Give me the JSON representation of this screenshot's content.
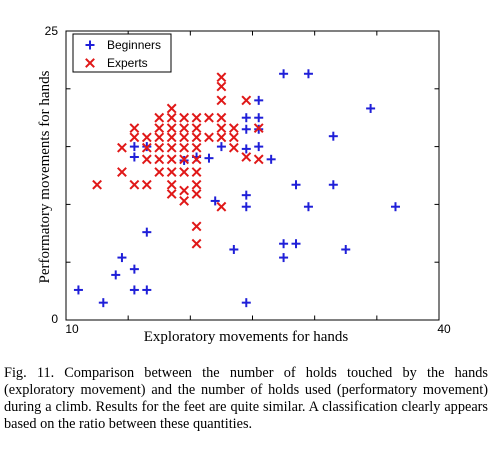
{
  "chart_data": {
    "type": "scatter",
    "title": "",
    "xlabel": "Exploratory movements for hands",
    "ylabel": "Performatory movements for hands",
    "xlim": [
      10,
      40
    ],
    "ylim": [
      0,
      25
    ],
    "x_tick_labels": [
      "10",
      "40"
    ],
    "y_tick_labels": [
      "0",
      "25"
    ],
    "grid": false,
    "legend_position": "top-left",
    "series": [
      {
        "name": "Beginners",
        "marker": "plus",
        "color": "#1f1fd8",
        "points": [
          [
            11,
            2.6
          ],
          [
            13,
            1.5
          ],
          [
            14,
            3.9
          ],
          [
            14.5,
            5.4
          ],
          [
            15.5,
            4.4
          ],
          [
            15.5,
            2.6
          ],
          [
            16.5,
            7.6
          ],
          [
            16.5,
            2.6
          ],
          [
            15.5,
            14.1
          ],
          [
            16.5,
            15
          ],
          [
            15.5,
            15
          ],
          [
            19.5,
            13.8
          ],
          [
            20.5,
            14.1
          ],
          [
            21.5,
            14
          ],
          [
            22.5,
            15
          ],
          [
            22,
            10.3
          ],
          [
            23.5,
            6.1
          ],
          [
            24.5,
            9.8
          ],
          [
            24.5,
            10.8
          ],
          [
            24.5,
            1.5
          ],
          [
            24.5,
            16.5
          ],
          [
            24.5,
            17.5
          ],
          [
            24.5,
            14.8
          ],
          [
            25.5,
            17.5
          ],
          [
            25.5,
            16.5
          ],
          [
            25.5,
            15
          ],
          [
            25.5,
            19
          ],
          [
            26.5,
            13.9
          ],
          [
            27.5,
            5.4
          ],
          [
            27.5,
            6.6
          ],
          [
            27.5,
            21.3
          ],
          [
            28.5,
            6.6
          ],
          [
            28.5,
            11.7
          ],
          [
            29.5,
            21.3
          ],
          [
            29.5,
            9.8
          ],
          [
            31.5,
            15.9
          ],
          [
            31.5,
            11.7
          ],
          [
            32.5,
            6.1
          ],
          [
            34.5,
            18.3
          ],
          [
            36.5,
            9.8
          ]
        ]
      },
      {
        "name": "Experts",
        "marker": "x",
        "color": "#e01818",
        "points": [
          [
            12.5,
            11.7
          ],
          [
            14.5,
            14.9
          ],
          [
            14.5,
            12.8
          ],
          [
            15.5,
            16.6
          ],
          [
            15.5,
            15.8
          ],
          [
            15.5,
            11.7
          ],
          [
            16.5,
            15.8
          ],
          [
            16.5,
            14.9
          ],
          [
            16.5,
            13.9
          ],
          [
            16.5,
            11.7
          ],
          [
            17.5,
            17.5
          ],
          [
            17.5,
            16.6
          ],
          [
            17.5,
            15.8
          ],
          [
            17.5,
            14.9
          ],
          [
            17.5,
            13.9
          ],
          [
            17.5,
            12.8
          ],
          [
            18.5,
            18.3
          ],
          [
            18.5,
            17.5
          ],
          [
            18.5,
            16.6
          ],
          [
            18.5,
            15.8
          ],
          [
            18.5,
            14.9
          ],
          [
            18.5,
            13.9
          ],
          [
            18.5,
            12.8
          ],
          [
            18.5,
            11.7
          ],
          [
            18.5,
            10.9
          ],
          [
            19.5,
            17.5
          ],
          [
            19.5,
            16.6
          ],
          [
            19.5,
            15.8
          ],
          [
            19.5,
            14.9
          ],
          [
            19.5,
            13.9
          ],
          [
            19.5,
            12.8
          ],
          [
            19.5,
            11.2
          ],
          [
            19.5,
            10.3
          ],
          [
            20.5,
            17.5
          ],
          [
            20.5,
            16.6
          ],
          [
            20.5,
            15.8
          ],
          [
            20.5,
            14.9
          ],
          [
            20.5,
            13.9
          ],
          [
            20.5,
            12.8
          ],
          [
            20.5,
            11.7
          ],
          [
            20.5,
            10.9
          ],
          [
            20.5,
            6.6
          ],
          [
            21.5,
            17.5
          ],
          [
            21.5,
            15.8
          ],
          [
            22.5,
            21
          ],
          [
            22.5,
            20.2
          ],
          [
            22.5,
            19
          ],
          [
            22.5,
            17.5
          ],
          [
            22.5,
            16.6
          ],
          [
            22.5,
            15.8
          ],
          [
            22.5,
            9.8
          ],
          [
            23.5,
            16.6
          ],
          [
            23.5,
            15.8
          ],
          [
            23.5,
            14.9
          ],
          [
            24.5,
            19
          ],
          [
            24.5,
            14.1
          ],
          [
            25.5,
            16.6
          ],
          [
            25.5,
            13.9
          ],
          [
            20.5,
            8.1
          ]
        ]
      }
    ]
  },
  "caption": {
    "label": "Fig. 11.",
    "text": "Comparison between the number of holds touched by the hands (exploratory movement) and the number of holds used (performatory movement) during a climb. Results for the feet are quite similar. A classification clearly appears based on the ratio between these quantities."
  }
}
